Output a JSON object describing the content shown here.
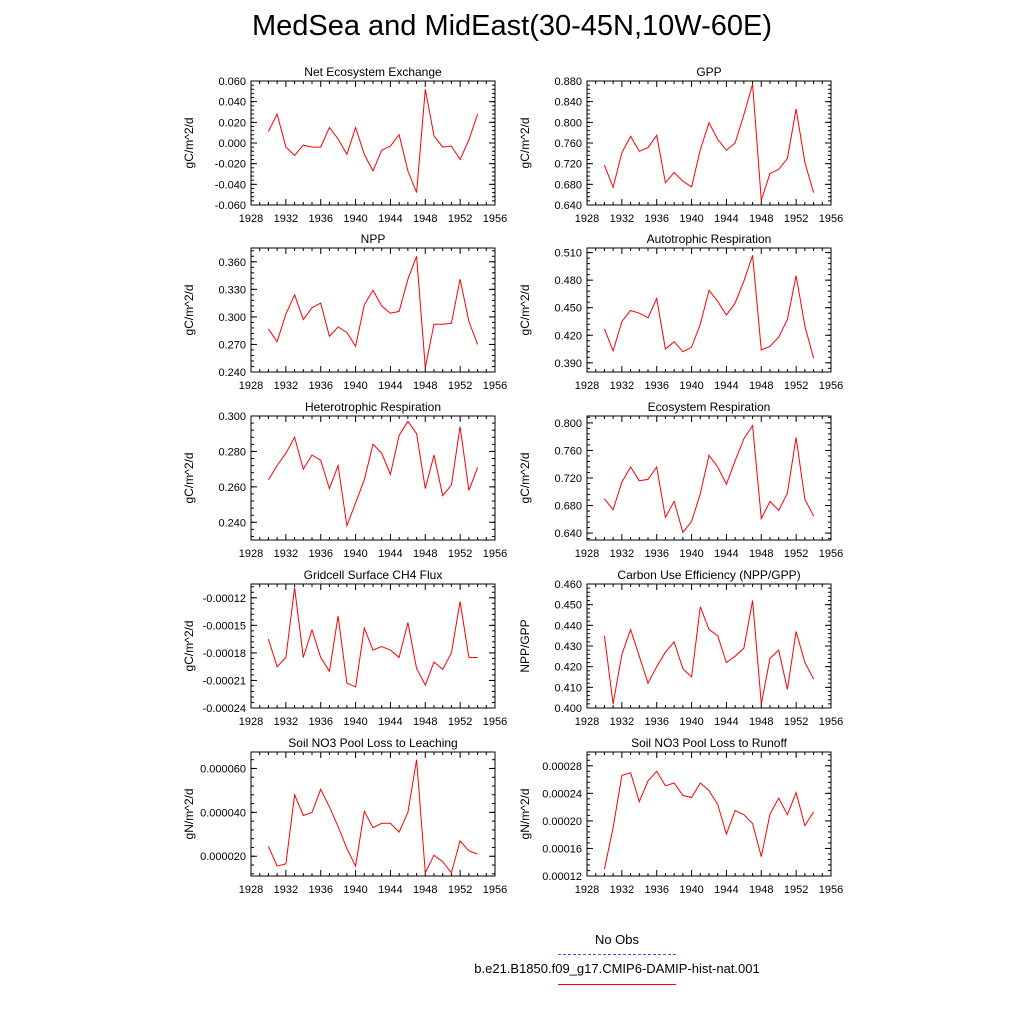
{
  "title": "MedSea and MidEast(30-45N,10W-60E)",
  "line_color": "#ff0000",
  "obs_color": "#4a4aff",
  "legend": {
    "obs_label": "No Obs",
    "model_label": "b.e21.B1850.f09_g17.CMIP6-DAMIP-hist-nat.001"
  },
  "x_ticks": [
    "1928",
    "1932",
    "1936",
    "1940",
    "1944",
    "1948",
    "1952",
    "1956"
  ],
  "chart_data": [
    {
      "type": "line",
      "title": "Net Ecosystem Exchange",
      "ylabel": "gC/m^2/d",
      "xlim": [
        1928,
        1956
      ],
      "ylim": [
        -0.06,
        0.06
      ],
      "yticks": [
        -0.06,
        -0.04,
        -0.02,
        0.0,
        0.02,
        0.04,
        0.06
      ],
      "ytick_labels": [
        "-0.060",
        "-0.040",
        "-0.020",
        "0.000",
        "0.020",
        "0.040",
        "0.060"
      ],
      "x": [
        1930,
        1931,
        1932,
        1933,
        1934,
        1935,
        1936,
        1937,
        1938,
        1939,
        1940,
        1941,
        1942,
        1943,
        1944,
        1945,
        1946,
        1947,
        1948,
        1949,
        1950,
        1951,
        1952,
        1953,
        1954
      ],
      "values": [
        0.011,
        0.028,
        -0.004,
        -0.012,
        -0.002,
        -0.004,
        -0.004,
        0.015,
        0.004,
        -0.011,
        0.015,
        -0.011,
        -0.027,
        -0.007,
        -0.003,
        0.008,
        -0.027,
        -0.048,
        0.052,
        0.007,
        -0.004,
        -0.003,
        -0.016,
        0.003,
        0.028
      ]
    },
    {
      "type": "line",
      "title": "GPP",
      "ylabel": "gC/m^2/d",
      "xlim": [
        1928,
        1956
      ],
      "ylim": [
        0.64,
        0.88
      ],
      "yticks": [
        0.64,
        0.68,
        0.72,
        0.76,
        0.8,
        0.84,
        0.88
      ],
      "ytick_labels": [
        "0.640",
        "0.680",
        "0.720",
        "0.760",
        "0.800",
        "0.840",
        "0.880"
      ],
      "x": [
        1930,
        1931,
        1932,
        1933,
        1934,
        1935,
        1936,
        1937,
        1938,
        1939,
        1940,
        1941,
        1942,
        1943,
        1944,
        1945,
        1946,
        1947,
        1948,
        1949,
        1950,
        1951,
        1952,
        1953,
        1954
      ],
      "values": [
        0.717,
        0.674,
        0.741,
        0.773,
        0.744,
        0.751,
        0.775,
        0.683,
        0.703,
        0.686,
        0.675,
        0.747,
        0.799,
        0.767,
        0.746,
        0.76,
        0.815,
        0.874,
        0.649,
        0.701,
        0.709,
        0.73,
        0.826,
        0.722,
        0.664
      ]
    },
    {
      "type": "line",
      "title": "NPP",
      "ylabel": "gC/m^2/d",
      "xlim": [
        1928,
        1956
      ],
      "ylim": [
        0.24,
        0.375
      ],
      "yticks": [
        0.24,
        0.27,
        0.3,
        0.33,
        0.36
      ],
      "ytick_labels": [
        "0.240",
        "0.270",
        "0.300",
        "0.330",
        "0.360"
      ],
      "x": [
        1930,
        1931,
        1932,
        1933,
        1934,
        1935,
        1936,
        1937,
        1938,
        1939,
        1940,
        1941,
        1942,
        1943,
        1944,
        1945,
        1946,
        1947,
        1948,
        1949,
        1950,
        1951,
        1952,
        1953,
        1954
      ],
      "values": [
        0.287,
        0.273,
        0.303,
        0.324,
        0.297,
        0.31,
        0.315,
        0.279,
        0.289,
        0.283,
        0.268,
        0.313,
        0.329,
        0.312,
        0.304,
        0.306,
        0.341,
        0.366,
        0.245,
        0.292,
        0.292,
        0.293,
        0.341,
        0.295,
        0.27
      ]
    },
    {
      "type": "line",
      "title": "Autotrophic Respiration",
      "ylabel": "gC/m^2/d",
      "xlim": [
        1928,
        1956
      ],
      "ylim": [
        0.38,
        0.515
      ],
      "yticks": [
        0.39,
        0.42,
        0.45,
        0.48,
        0.51
      ],
      "ytick_labels": [
        "0.390",
        "0.420",
        "0.450",
        "0.480",
        "0.510"
      ],
      "x": [
        1930,
        1931,
        1932,
        1933,
        1934,
        1935,
        1936,
        1937,
        1938,
        1939,
        1940,
        1941,
        1942,
        1943,
        1944,
        1945,
        1946,
        1947,
        1948,
        1949,
        1950,
        1951,
        1952,
        1953,
        1954
      ],
      "values": [
        0.427,
        0.403,
        0.435,
        0.447,
        0.444,
        0.439,
        0.46,
        0.405,
        0.413,
        0.402,
        0.407,
        0.432,
        0.469,
        0.457,
        0.442,
        0.455,
        0.479,
        0.507,
        0.404,
        0.408,
        0.418,
        0.437,
        0.485,
        0.43,
        0.395
      ]
    },
    {
      "type": "line",
      "title": "Heterotrophic Respiration",
      "ylabel": "gC/m^2/d",
      "xlim": [
        1928,
        1956
      ],
      "ylim": [
        0.23,
        0.3
      ],
      "yticks": [
        0.24,
        0.26,
        0.28,
        0.3
      ],
      "ytick_labels": [
        "0.240",
        "0.260",
        "0.280",
        "0.300"
      ],
      "x": [
        1930,
        1931,
        1932,
        1933,
        1934,
        1935,
        1936,
        1937,
        1938,
        1939,
        1940,
        1941,
        1942,
        1943,
        1944,
        1945,
        1946,
        1947,
        1948,
        1949,
        1950,
        1951,
        1952,
        1953,
        1954
      ],
      "values": [
        0.264,
        0.272,
        0.279,
        0.288,
        0.27,
        0.278,
        0.275,
        0.259,
        0.272,
        0.238,
        0.251,
        0.264,
        0.284,
        0.279,
        0.267,
        0.289,
        0.297,
        0.29,
        0.259,
        0.278,
        0.255,
        0.261,
        0.294,
        0.258,
        0.271
      ]
    },
    {
      "type": "line",
      "title": "Ecosystem Respiration",
      "ylabel": "gC/m^2/d",
      "xlim": [
        1928,
        1956
      ],
      "ylim": [
        0.63,
        0.81
      ],
      "yticks": [
        0.64,
        0.68,
        0.72,
        0.76,
        0.8
      ],
      "ytick_labels": [
        "0.640",
        "0.680",
        "0.720",
        "0.760",
        "0.800"
      ],
      "x": [
        1930,
        1931,
        1932,
        1933,
        1934,
        1935,
        1936,
        1937,
        1938,
        1939,
        1940,
        1941,
        1942,
        1943,
        1944,
        1945,
        1946,
        1947,
        1948,
        1949,
        1950,
        1951,
        1952,
        1953,
        1954
      ],
      "values": [
        0.69,
        0.674,
        0.714,
        0.736,
        0.716,
        0.718,
        0.736,
        0.663,
        0.686,
        0.641,
        0.657,
        0.697,
        0.753,
        0.736,
        0.711,
        0.745,
        0.777,
        0.796,
        0.661,
        0.686,
        0.673,
        0.698,
        0.779,
        0.689,
        0.665
      ]
    },
    {
      "type": "line",
      "title": "Gridcell Surface CH4 Flux",
      "ylabel": "gC/m^2/d",
      "xlim": [
        1928,
        1956
      ],
      "ylim": [
        -0.00024,
        -0.000105
      ],
      "yticks": [
        -0.00024,
        -0.00021,
        -0.00018,
        -0.00015,
        -0.00012
      ],
      "ytick_labels": [
        "-0.00024",
        "-0.00021",
        "-0.00018",
        "-0.00015",
        "-0.00012"
      ],
      "x": [
        1930,
        1931,
        1932,
        1933,
        1934,
        1935,
        1936,
        1937,
        1938,
        1939,
        1940,
        1941,
        1942,
        1943,
        1944,
        1945,
        1946,
        1947,
        1948,
        1949,
        1950,
        1951,
        1952,
        1953,
        1954
      ],
      "values": [
        -0.000165,
        -0.000195,
        -0.000185,
        -0.000109,
        -0.000185,
        -0.000155,
        -0.000185,
        -0.0002,
        -0.00014,
        -0.000213,
        -0.000217,
        -0.000153,
        -0.000177,
        -0.000173,
        -0.000177,
        -0.000185,
        -0.000147,
        -0.000197,
        -0.000215,
        -0.00019,
        -0.000198,
        -0.00018,
        -0.000124,
        -0.000185,
        -0.000185
      ]
    },
    {
      "type": "line",
      "title": "Carbon Use Efficiency (NPP/GPP)",
      "ylabel": "NPP/GPP",
      "xlim": [
        1928,
        1956
      ],
      "ylim": [
        0.4,
        0.46
      ],
      "yticks": [
        0.4,
        0.41,
        0.42,
        0.43,
        0.44,
        0.45,
        0.46
      ],
      "ytick_labels": [
        "0.400",
        "0.410",
        "0.420",
        "0.430",
        "0.440",
        "0.450",
        "0.460"
      ],
      "x": [
        1930,
        1931,
        1932,
        1933,
        1934,
        1935,
        1936,
        1937,
        1938,
        1939,
        1940,
        1941,
        1942,
        1943,
        1944,
        1945,
        1946,
        1947,
        1948,
        1949,
        1950,
        1951,
        1952,
        1953,
        1954
      ],
      "values": [
        0.435,
        0.402,
        0.426,
        0.438,
        0.425,
        0.412,
        0.42,
        0.427,
        0.432,
        0.419,
        0.415,
        0.449,
        0.438,
        0.435,
        0.422,
        0.425,
        0.429,
        0.452,
        0.402,
        0.424,
        0.428,
        0.409,
        0.437,
        0.422,
        0.414
      ]
    },
    {
      "type": "line",
      "title": "Soil NO3 Pool Loss to Leaching",
      "ylabel": "gN/m^2/d",
      "xlim": [
        1928,
        1956
      ],
      "ylim": [
        1.1e-05,
        6.75e-05
      ],
      "yticks": [
        2e-05,
        4e-05,
        6e-05
      ],
      "ytick_labels": [
        "0.000020",
        "0.000040",
        "0.000060"
      ],
      "x": [
        1930,
        1931,
        1932,
        1933,
        1934,
        1935,
        1936,
        1937,
        1938,
        1939,
        1940,
        1941,
        1942,
        1943,
        1944,
        1945,
        1946,
        1947,
        1948,
        1949,
        1950,
        1951,
        1952,
        1953,
        1954
      ],
      "values": [
        2.45e-05,
        1.55e-05,
        1.65e-05,
        4.8e-05,
        3.85e-05,
        4e-05,
        5.05e-05,
        4.25e-05,
        3.35e-05,
        2.35e-05,
        1.55e-05,
        4.05e-05,
        3.3e-05,
        3.5e-05,
        3.5e-05,
        3.1e-05,
        4e-05,
        6.4e-05,
        1.25e-05,
        2.05e-05,
        1.75e-05,
        1.25e-05,
        2.7e-05,
        2.25e-05,
        2.1e-05
      ]
    },
    {
      "type": "line",
      "title": "Soil NO3 Pool Loss to Runoff",
      "ylabel": "gN/m^2/d",
      "xlim": [
        1928,
        1956
      ],
      "ylim": [
        0.00012,
        0.0003
      ],
      "yticks": [
        0.00012,
        0.00016,
        0.0002,
        0.00024,
        0.00028
      ],
      "ytick_labels": [
        "0.00012",
        "0.00016",
        "0.00020",
        "0.00024",
        "0.00028"
      ],
      "x": [
        1930,
        1931,
        1932,
        1933,
        1934,
        1935,
        1936,
        1937,
        1938,
        1939,
        1940,
        1941,
        1942,
        1943,
        1944,
        1945,
        1946,
        1947,
        1948,
        1949,
        1950,
        1951,
        1952,
        1953,
        1954
      ],
      "values": [
        0.00013,
        0.00019,
        0.000266,
        0.00027,
        0.000228,
        0.000258,
        0.000272,
        0.000251,
        0.000255,
        0.000237,
        0.000234,
        0.000255,
        0.000244,
        0.000224,
        0.000181,
        0.000215,
        0.000209,
        0.000196,
        0.000148,
        0.00021,
        0.000233,
        0.000209,
        0.000241,
        0.000193,
        0.000213
      ]
    }
  ]
}
